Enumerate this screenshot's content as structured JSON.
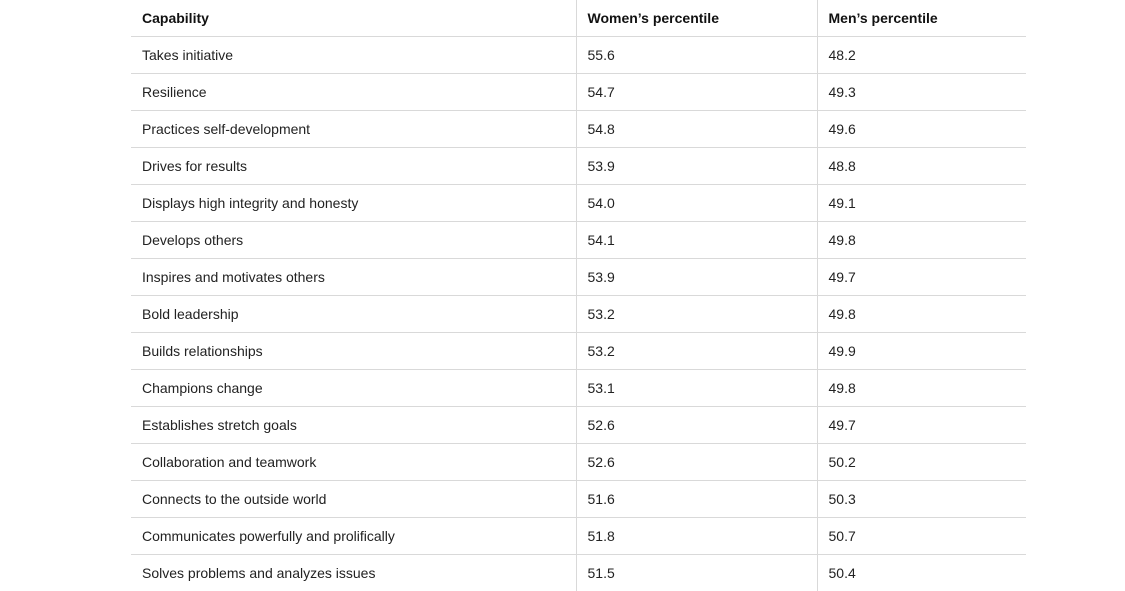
{
  "table": {
    "headers": [
      "Capability",
      "Women’s percentile",
      "Men’s percentile"
    ],
    "rows": [
      [
        "Takes initiative",
        "55.6",
        "48.2"
      ],
      [
        "Resilience",
        "54.7",
        "49.3"
      ],
      [
        "Practices self-development",
        "54.8",
        "49.6"
      ],
      [
        "Drives for results",
        "53.9",
        "48.8"
      ],
      [
        "Displays high integrity and honesty",
        "54.0",
        "49.1"
      ],
      [
        "Develops others",
        "54.1",
        "49.8"
      ],
      [
        "Inspires and motivates others",
        "53.9",
        "49.7"
      ],
      [
        "Bold leadership",
        "53.2",
        "49.8"
      ],
      [
        "Builds relationships",
        "53.2",
        "49.9"
      ],
      [
        "Champions change",
        "53.1",
        "49.8"
      ],
      [
        "Establishes stretch goals",
        "52.6",
        "49.7"
      ],
      [
        "Collaboration and teamwork",
        "52.6",
        "50.2"
      ],
      [
        "Connects to the outside world",
        "51.6",
        "50.3"
      ],
      [
        "Communicates powerfully and prolifically",
        "51.8",
        "50.7"
      ],
      [
        "Solves problems and analyzes issues",
        "51.5",
        "50.4"
      ]
    ]
  }
}
